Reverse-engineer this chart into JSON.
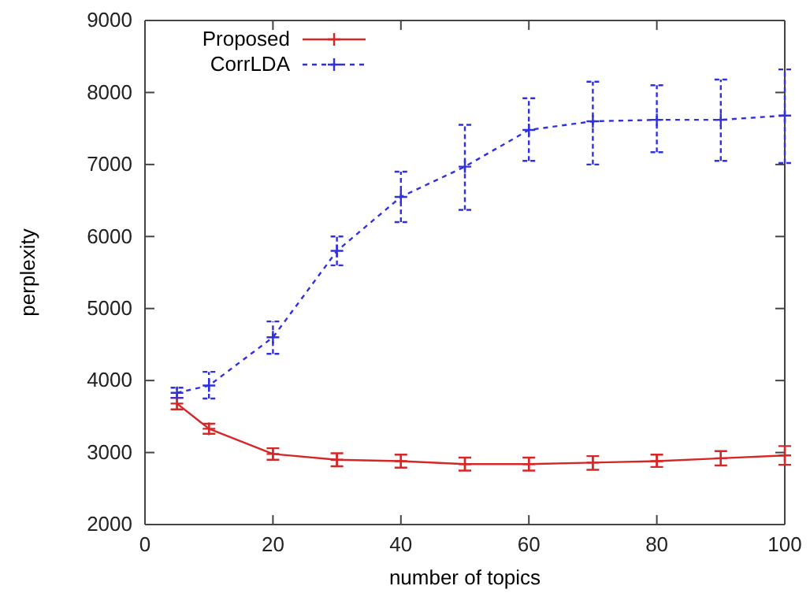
{
  "chart_data": {
    "type": "line",
    "xlabel": "number of topics",
    "ylabel": "perplexity",
    "xlim": [
      0,
      100
    ],
    "xticks": [
      0,
      20,
      40,
      60,
      80,
      100
    ],
    "ylim": [
      2000,
      9000
    ],
    "yticks": [
      2000,
      3000,
      4000,
      5000,
      6000,
      7000,
      8000,
      9000
    ],
    "grid": false,
    "legend": "top left",
    "series": [
      {
        "name": "Proposed",
        "color": "#d62728",
        "marker": "cross",
        "line_style": "solid",
        "x": [
          5,
          10,
          20,
          30,
          40,
          50,
          60,
          70,
          80,
          90,
          100
        ],
        "values": [
          3680,
          3330,
          2980,
          2900,
          2880,
          2840,
          2840,
          2860,
          2880,
          2920,
          2960
        ],
        "errors": [
          [
            3600,
            3760
          ],
          [
            3260,
            3400
          ],
          [
            2900,
            3060
          ],
          [
            2810,
            2990
          ],
          [
            2790,
            2970
          ],
          [
            2750,
            2930
          ],
          [
            2750,
            2930
          ],
          [
            2760,
            2950
          ],
          [
            2800,
            2970
          ],
          [
            2820,
            3020
          ],
          [
            2830,
            3090
          ]
        ]
      },
      {
        "name": "CorrLDA",
        "color": "#3030e0",
        "marker": "cross",
        "line_style": "dotted",
        "x": [
          5,
          10,
          20,
          30,
          40,
          50,
          60,
          70,
          80,
          90,
          100
        ],
        "values": [
          3830,
          3930,
          4600,
          5800,
          6550,
          6970,
          7480,
          7600,
          7620,
          7620,
          7680
        ],
        "errors": [
          [
            3760,
            3900
          ],
          [
            3750,
            4120
          ],
          [
            4370,
            4820
          ],
          [
            5600,
            6000
          ],
          [
            6200,
            6900
          ],
          [
            6370,
            7550
          ],
          [
            7050,
            7920
          ],
          [
            7000,
            8150
          ],
          [
            7170,
            8100
          ],
          [
            7050,
            8180
          ],
          [
            7020,
            8320
          ]
        ]
      }
    ]
  }
}
